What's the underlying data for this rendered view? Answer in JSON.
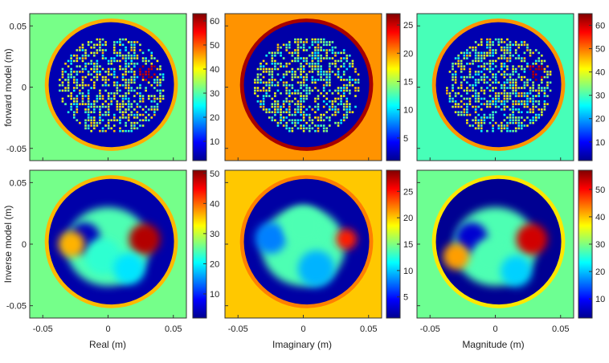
{
  "figure": {
    "row_labels": [
      "forward model (m)",
      "Inverse model (m)"
    ],
    "column_labels": [
      "Real (m)",
      "Imaginary (m)",
      "Magnitude (m)"
    ]
  },
  "axes": {
    "x_ticks": [
      "-0.05",
      "0",
      "0.05"
    ],
    "x_tick_values": [
      -0.05,
      0,
      0.05
    ],
    "y_ticks": [
      "0.05",
      "0",
      "-0.05"
    ],
    "y_tick_values": [
      0.05,
      0,
      -0.05
    ],
    "xlim": [
      -0.06,
      0.06
    ],
    "ylim": [
      -0.06,
      0.06
    ]
  },
  "colormap": "jet",
  "chart_data": [
    {
      "type": "heatmap",
      "row": "forward",
      "column": "Real",
      "clim": [
        2,
        63
      ],
      "colorbar_ticks": [
        10,
        20,
        30,
        40,
        50,
        60
      ],
      "background_value": 32,
      "rim_value": 45,
      "interior_value": 5,
      "texture": "speckle"
    },
    {
      "type": "heatmap",
      "row": "forward",
      "column": "Imaginary",
      "clim": [
        1,
        27
      ],
      "colorbar_ticks": [
        5,
        10,
        15,
        20,
        25
      ],
      "background_value": 20,
      "rim_value": 26,
      "interior_value": 2,
      "texture": "speckle"
    },
    {
      "type": "heatmap",
      "row": "forward",
      "column": "Magnitude",
      "clim": [
        2,
        65
      ],
      "colorbar_ticks": [
        10,
        20,
        30,
        40,
        50,
        60
      ],
      "background_value": 30,
      "rim_value": 48,
      "interior_value": 5,
      "texture": "speckle"
    },
    {
      "type": "heatmap",
      "row": "inverse",
      "column": "Real",
      "clim": [
        2,
        51
      ],
      "colorbar_ticks": [
        10,
        20,
        30,
        40,
        50
      ],
      "background_value": 26,
      "rim_value": 36,
      "interior_value": 4,
      "texture": "smooth"
    },
    {
      "type": "heatmap",
      "row": "inverse",
      "column": "Imaginary",
      "clim": [
        1,
        29
      ],
      "colorbar_ticks": [
        5,
        10,
        15,
        20,
        25
      ],
      "background_value": 20,
      "rim_value": 22,
      "interior_value": 2,
      "texture": "smooth"
    },
    {
      "type": "heatmap",
      "row": "inverse",
      "column": "Magnitude",
      "clim": [
        3,
        57
      ],
      "colorbar_ticks": [
        10,
        20,
        30,
        40,
        50
      ],
      "background_value": 29,
      "rim_value": 38,
      "interior_value": 4,
      "texture": "smooth"
    }
  ]
}
